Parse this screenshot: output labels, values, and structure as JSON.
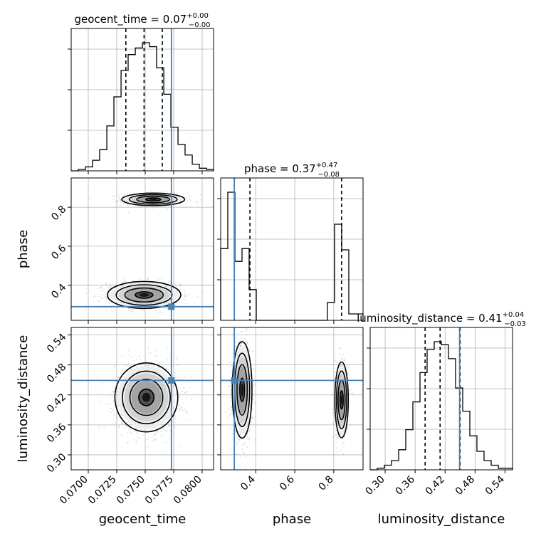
{
  "colors": {
    "truth": "#4682b4",
    "hist": "#000000",
    "grid": "#b0b0b0",
    "scatter": "#9a9a9a"
  },
  "chart_data": {
    "type": "corner",
    "parameters": [
      "geocent_time",
      "phase",
      "luminosity_distance"
    ],
    "truths": {
      "geocent_time": 0.0773,
      "phase": 0.29,
      "luminosity_distance": 0.449
    },
    "titles": {
      "geocent_time": {
        "prefix": "geocent_time = ",
        "median": "0.07",
        "plus": "+0.00",
        "minus": "−0.00"
      },
      "phase": {
        "prefix": "phase = ",
        "median": "0.37",
        "plus": "+0.47",
        "minus": "−0.08"
      },
      "luminosity_distance": {
        "prefix": "luminosity_distance = ",
        "median": "0.41",
        "plus": "+0.04",
        "minus": "−0.03"
      }
    },
    "axis_labels": {
      "geocent_time": "geocent_time",
      "phase": "phase",
      "luminosity_distance": "luminosity_distance"
    },
    "ranges": {
      "geocent_time": [
        0.0685,
        0.081
      ],
      "phase": [
        0.22,
        0.95
      ],
      "luminosity_distance": [
        0.27,
        0.555
      ]
    },
    "ticks": {
      "geocent_time": [
        "0.0700",
        "0.0725",
        "0.0750",
        "0.0775",
        "0.0800"
      ],
      "phase_x": [
        "0.4",
        "0.6",
        "0.8"
      ],
      "phase_y": [
        "0.4",
        "0.6",
        "0.8"
      ],
      "luminosity_distance": [
        "0.30",
        "0.36",
        "0.42",
        "0.48",
        "0.54"
      ]
    },
    "quantiles": {
      "geocent_time": [
        0.0733,
        0.0749,
        0.0765
      ],
      "phase": [
        0.29,
        0.37,
        0.84
      ],
      "luminosity_distance": [
        0.38,
        0.41,
        0.45
      ]
    },
    "histograms": {
      "geocent_time": {
        "edges": [
          0.0685,
          0.06913,
          0.06975,
          0.07038,
          0.071,
          0.07163,
          0.07225,
          0.07288,
          0.0735,
          0.07413,
          0.07475,
          0.07538,
          0.076,
          0.07663,
          0.07725,
          0.07788,
          0.0785,
          0.07913,
          0.07975,
          0.08038,
          0.081
        ],
        "counts": [
          0,
          1,
          3,
          8,
          16,
          34,
          56,
          76,
          88,
          93,
          97,
          94,
          78,
          58,
          33,
          20,
          12,
          5,
          2,
          1
        ]
      },
      "phase": {
        "edges": [
          0.22,
          0.2565,
          0.293,
          0.3295,
          0.366,
          0.4025,
          0.439,
          0.4755,
          0.512,
          0.5485,
          0.585,
          0.6215,
          0.658,
          0.6945,
          0.731,
          0.7675,
          0.804,
          0.8405,
          0.877,
          0.9135,
          0.95
        ],
        "counts": [
          56,
          100,
          46,
          56,
          24,
          0,
          0,
          0,
          0,
          0,
          0,
          0,
          0,
          0,
          0,
          14,
          75,
          55,
          5,
          5
        ]
      },
      "luminosity_distance": {
        "edges": [
          0.27,
          0.28425,
          0.2985,
          0.31275,
          0.327,
          0.34125,
          0.3555,
          0.36975,
          0.384,
          0.39825,
          0.4125,
          0.42675,
          0.441,
          0.45525,
          0.4695,
          0.48375,
          0.498,
          0.51225,
          0.5265,
          0.54075,
          0.555
        ],
        "counts": [
          0,
          1,
          3,
          6,
          13,
          26,
          44,
          63,
          78,
          83,
          81,
          72,
          53,
          38,
          22,
          12,
          6,
          3,
          1,
          1
        ]
      }
    },
    "density_modes": {
      "geocent_time_vs_phase": [
        {
          "x": 0.0757,
          "y": 0.84,
          "sx": 0.0012,
          "sy": 0.014,
          "weight": 0.45
        },
        {
          "x": 0.0749,
          "y": 0.35,
          "sx": 0.0014,
          "sy": 0.03,
          "weight": 0.55
        }
      ],
      "geocent_time_vs_luminosity_distance": [
        {
          "x": 0.0751,
          "y": 0.415,
          "sx": 0.0012,
          "sy": 0.03,
          "weight": 1.0
        }
      ],
      "phase_vs_luminosity_distance": [
        {
          "x": 0.33,
          "y": 0.43,
          "sx": 0.022,
          "sy": 0.042,
          "weight": 0.55
        },
        {
          "x": 0.84,
          "y": 0.41,
          "sx": 0.015,
          "sy": 0.033,
          "weight": 0.45
        }
      ]
    },
    "grid": true
  }
}
